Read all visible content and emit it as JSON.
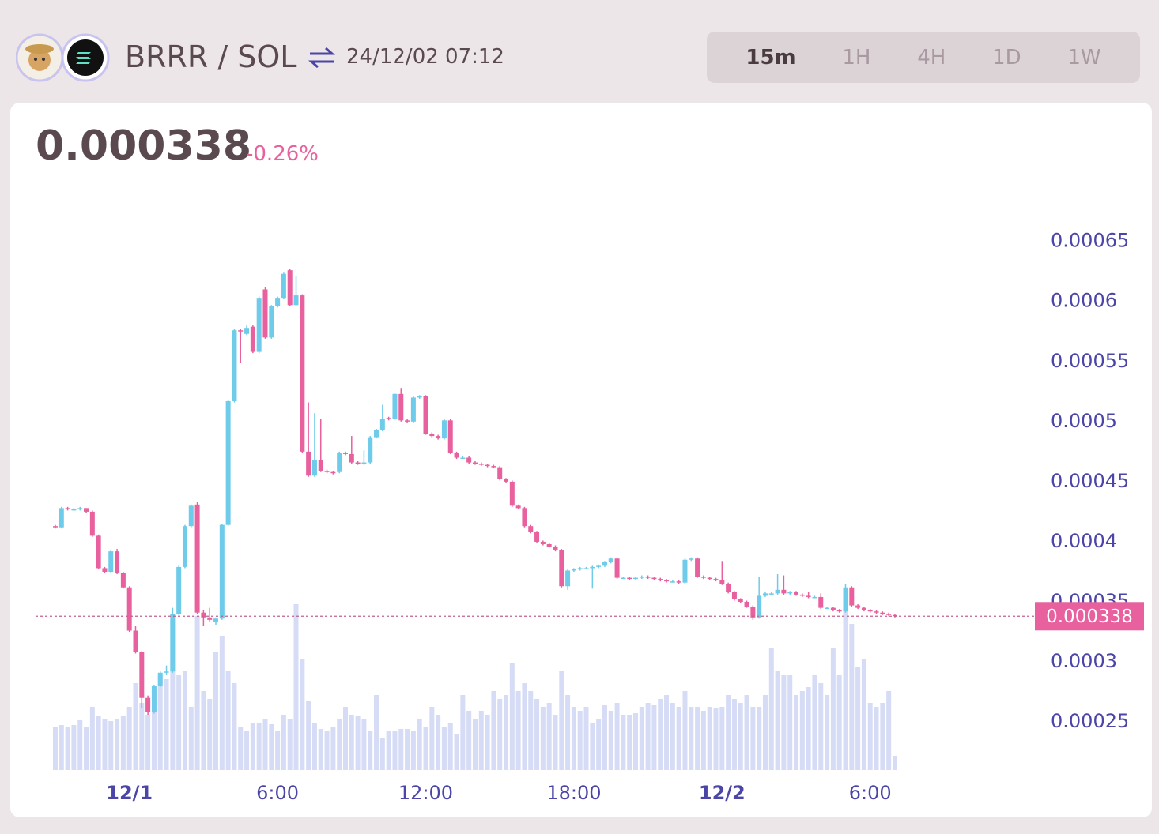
{
  "header": {
    "pair": "BRRR / SOL",
    "datetime": "24/12/02 07:12",
    "timeframes": [
      "15m",
      "1H",
      "4H",
      "1D",
      "1W"
    ],
    "selected": "15m"
  },
  "chart_data": {
    "type": "candlestick",
    "last_price": 0.000338,
    "change": "-0.26%",
    "up_color": "#6ecbea",
    "down_color": "#e8609e",
    "volume_color": "#d6dcf5",
    "xlim": [
      -3.8,
      36.7
    ],
    "ylim": [
      0.00021,
      0.00068
    ],
    "yticks": [
      0.00025,
      0.0003,
      0.00035,
      0.0004,
      0.00045,
      0.0005,
      0.00055,
      0.0006,
      0.00065
    ],
    "xticks": [
      {
        "value": 0,
        "label": "12/1"
      },
      {
        "value": 6,
        "label": "6:00"
      },
      {
        "value": 12,
        "label": "12:00"
      },
      {
        "value": 18,
        "label": "18:00"
      },
      {
        "value": 24,
        "label": "12/2"
      },
      {
        "value": 30,
        "label": "6:00"
      }
    ],
    "x": [
      -3,
      -2.75,
      -2.5,
      -2.25,
      -2,
      -1.75,
      -1.5,
      -1.25,
      -1,
      -0.75,
      -0.5,
      -0.25,
      0,
      0.25,
      0.5,
      0.75,
      1,
      1.25,
      1.5,
      1.75,
      2,
      2.25,
      2.5,
      2.75,
      3,
      3.25,
      3.5,
      3.75,
      4,
      4.25,
      4.5,
      4.75,
      5,
      5.25,
      5.5,
      5.75,
      6,
      6.25,
      6.5,
      6.75,
      7,
      7.25,
      7.5,
      7.75,
      8,
      8.25,
      8.5,
      8.75,
      9,
      9.25,
      9.5,
      9.75,
      10,
      10.25,
      10.5,
      10.75,
      11,
      11.25,
      11.5,
      11.75,
      12,
      12.25,
      12.5,
      12.75,
      13,
      13.25,
      13.5,
      13.75,
      14,
      14.25,
      14.5,
      14.75,
      15,
      15.25,
      15.5,
      15.75,
      16,
      16.25,
      16.5,
      16.75,
      17,
      17.25,
      17.5,
      17.75,
      18,
      18.25,
      18.5,
      18.75,
      19,
      19.25,
      19.5,
      19.75,
      20,
      20.25,
      20.5,
      20.75,
      21,
      21.25,
      21.5,
      21.75,
      22,
      22.25,
      22.5,
      22.75,
      23,
      23.25,
      23.5,
      23.75,
      24,
      24.25,
      24.5,
      24.75,
      25,
      25.25,
      25.5,
      25.75,
      26,
      26.25,
      26.5,
      26.75,
      27,
      27.25,
      27.5,
      27.75,
      28,
      28.25,
      28.5,
      28.75,
      29,
      29.25,
      29.5,
      29.75,
      30,
      30.25,
      30.5,
      30.75,
      31
    ],
    "candles": [
      [
        0.000413,
        0.000414,
        0.000411,
        0.000412
      ],
      [
        0.000412,
        0.000429,
        0.000411,
        0.000428
      ],
      [
        0.000428,
        0.000429,
        0.000426,
        0.000427
      ],
      [
        0.000427,
        0.000428,
        0.000426,
        0.000427
      ],
      [
        0.000427,
        0.000429,
        0.000426,
        0.000428
      ],
      [
        0.000428,
        0.000428,
        0.000424,
        0.000425
      ],
      [
        0.000425,
        0.000426,
        0.000404,
        0.000405
      ],
      [
        0.000405,
        0.000406,
        0.000377,
        0.000378
      ],
      [
        0.000378,
        0.000379,
        0.000374,
        0.000375
      ],
      [
        0.000375,
        0.000393,
        0.000374,
        0.000392
      ],
      [
        0.000392,
        0.000394,
        0.000373,
        0.000374
      ],
      [
        0.000374,
        0.000375,
        0.000361,
        0.000362
      ],
      [
        0.000362,
        0.000363,
        0.000325,
        0.000326
      ],
      [
        0.000326,
        0.00033,
        0.000307,
        0.000308
      ],
      [
        0.000308,
        0.000309,
        0.000262,
        0.00027
      ],
      [
        0.00027,
        0.000272,
        0.000256,
        0.000258
      ],
      [
        0.000258,
        0.000281,
        0.000257,
        0.00028
      ],
      [
        0.00028,
        0.000292,
        0.000279,
        0.000291
      ],
      [
        0.000291,
        0.000297,
        0.000289,
        0.000292
      ],
      [
        0.000292,
        0.000345,
        0.000291,
        0.00034
      ],
      [
        0.00034,
        0.00038,
        0.000339,
        0.000379
      ],
      [
        0.000379,
        0.000414,
        0.000378,
        0.000413
      ],
      [
        0.000413,
        0.000431,
        0.000412,
        0.00043
      ],
      [
        0.000431,
        0.000433,
        0.00034,
        0.000341
      ],
      [
        0.000341,
        0.000343,
        0.00033,
        0.000337
      ],
      [
        0.000337,
        0.000345,
        0.000333,
        0.000335
      ],
      [
        0.000333,
        0.000337,
        0.000331,
        0.000336
      ],
      [
        0.000336,
        0.000415,
        0.000335,
        0.000414
      ],
      [
        0.000414,
        0.000518,
        0.000413,
        0.000517
      ],
      [
        0.000517,
        0.000577,
        0.000516,
        0.000576
      ],
      [
        0.000576,
        0.000577,
        0.000549,
        0.000575
      ],
      [
        0.000573,
        0.00058,
        0.000572,
        0.000578
      ],
      [
        0.000579,
        0.00058,
        0.000557,
        0.000558
      ],
      [
        0.000558,
        0.000604,
        0.000557,
        0.000603
      ],
      [
        0.00061,
        0.000612,
        0.000569,
        0.00057
      ],
      [
        0.00057,
        0.000597,
        0.000569,
        0.000596
      ],
      [
        0.000596,
        0.000604,
        0.000595,
        0.000603
      ],
      [
        0.000603,
        0.000624,
        0.000602,
        0.000623
      ],
      [
        0.000626,
        0.000627,
        0.000596,
        0.000597
      ],
      [
        0.000597,
        0.000621,
        0.000596,
        0.000605
      ],
      [
        0.000605,
        0.000606,
        0.000474,
        0.000475
      ],
      [
        0.000475,
        0.000516,
        0.000454,
        0.000455
      ],
      [
        0.000455,
        0.000507,
        0.000454,
        0.000468
      ],
      [
        0.000468,
        0.000502,
        0.000458,
        0.000459
      ],
      [
        0.000459,
        0.00046,
        0.000457,
        0.000458
      ],
      [
        0.000458,
        0.000459,
        0.000456,
        0.000457
      ],
      [
        0.000458,
        0.000475,
        0.000457,
        0.000474
      ],
      [
        0.000474,
        0.000475,
        0.000472,
        0.000473
      ],
      [
        0.000473,
        0.000488,
        0.000465,
        0.000466
      ],
      [
        0.000466,
        0.000467,
        0.000464,
        0.000465
      ],
      [
        0.000465,
        0.000476,
        0.000464,
        0.000466
      ],
      [
        0.000466,
        0.000488,
        0.000465,
        0.000487
      ],
      [
        0.000487,
        0.000494,
        0.000486,
        0.000493
      ],
      [
        0.000493,
        0.000514,
        0.000492,
        0.000502
      ],
      [
        0.000503,
        0.000504,
        0.000501,
        0.000502
      ],
      [
        0.000502,
        0.000524,
        0.000501,
        0.000523
      ],
      [
        0.000523,
        0.000528,
        0.0005,
        0.000501
      ],
      [
        0.000501,
        0.000502,
        0.000499,
        0.0005
      ],
      [
        0.0005,
        0.000521,
        0.000499,
        0.00052
      ],
      [
        0.00052,
        0.000522,
        0.000519,
        0.000521
      ],
      [
        0.000521,
        0.000522,
        0.000489,
        0.00049
      ],
      [
        0.00049,
        0.000491,
        0.000487,
        0.000488
      ],
      [
        0.000488,
        0.000489,
        0.000485,
        0.000486
      ],
      [
        0.000486,
        0.000502,
        0.000485,
        0.000501
      ],
      [
        0.000501,
        0.000502,
        0.000473,
        0.000474
      ],
      [
        0.000474,
        0.000475,
        0.000469,
        0.00047
      ],
      [
        0.00047,
        0.000471,
        0.000469,
        0.00047
      ],
      [
        0.00047,
        0.000471,
        0.000465,
        0.000466
      ],
      [
        0.000466,
        0.000467,
        0.000464,
        0.000465
      ],
      [
        0.000465,
        0.000466,
        0.000463,
        0.000464
      ],
      [
        0.000464,
        0.000465,
        0.000462,
        0.000463
      ],
      [
        0.000463,
        0.000464,
        0.000461,
        0.000462
      ],
      [
        0.000462,
        0.000463,
        0.000451,
        0.000452
      ],
      [
        0.000452,
        0.000453,
        0.000449,
        0.00045
      ],
      [
        0.00045,
        0.000451,
        0.000429,
        0.00043
      ],
      [
        0.00043,
        0.000431,
        0.000427,
        0.000428
      ],
      [
        0.000428,
        0.000429,
        0.000412,
        0.000413
      ],
      [
        0.000413,
        0.000414,
        0.000407,
        0.000408
      ],
      [
        0.000408,
        0.000409,
        0.000399,
        0.0004
      ],
      [
        0.0004,
        0.000401,
        0.000397,
        0.000398
      ],
      [
        0.000398,
        0.000399,
        0.000395,
        0.000396
      ],
      [
        0.000396,
        0.000397,
        0.000392,
        0.000393
      ],
      [
        0.000393,
        0.000394,
        0.000362,
        0.000363
      ],
      [
        0.000363,
        0.000377,
        0.00036,
        0.000376
      ],
      [
        0.000376,
        0.000378,
        0.000375,
        0.000377
      ],
      [
        0.000377,
        0.000379,
        0.000376,
        0.000378
      ],
      [
        0.000378,
        0.000379,
        0.000377,
        0.000378
      ],
      [
        0.000378,
        0.00038,
        0.000361,
        0.000379
      ],
      [
        0.000379,
        0.000381,
        0.000378,
        0.00038
      ],
      [
        0.00038,
        0.000384,
        0.000379,
        0.000383
      ],
      [
        0.000383,
        0.000387,
        0.000382,
        0.000386
      ],
      [
        0.000386,
        0.000387,
        0.000369,
        0.00037
      ],
      [
        0.00037,
        0.000371,
        0.000369,
        0.00037
      ],
      [
        0.00037,
        0.000371,
        0.000368,
        0.000369
      ],
      [
        0.000369,
        0.000371,
        0.000368,
        0.00037
      ],
      [
        0.00037,
        0.000372,
        0.000369,
        0.000371
      ],
      [
        0.000371,
        0.000372,
        0.000369,
        0.00037
      ],
      [
        0.00037,
        0.000371,
        0.000368,
        0.000369
      ],
      [
        0.000369,
        0.00037,
        0.000367,
        0.000368
      ],
      [
        0.000368,
        0.000369,
        0.000366,
        0.000367
      ],
      [
        0.000367,
        0.000368,
        0.000366,
        0.000367
      ],
      [
        0.000367,
        0.000368,
        0.000365,
        0.000366
      ],
      [
        0.000366,
        0.000386,
        0.000365,
        0.000385
      ],
      [
        0.000385,
        0.000387,
        0.000384,
        0.000386
      ],
      [
        0.000386,
        0.000387,
        0.00037,
        0.000371
      ],
      [
        0.000371,
        0.000372,
        0.000369,
        0.00037
      ],
      [
        0.00037,
        0.000371,
        0.000368,
        0.000369
      ],
      [
        0.000369,
        0.00037,
        0.000367,
        0.000368
      ],
      [
        0.000368,
        0.000384,
        0.000364,
        0.000365
      ],
      [
        0.000365,
        0.000366,
        0.000357,
        0.000358
      ],
      [
        0.000358,
        0.000359,
        0.000351,
        0.000352
      ],
      [
        0.000352,
        0.000353,
        0.000349,
        0.00035
      ],
      [
        0.00035,
        0.000351,
        0.000345,
        0.000346
      ],
      [
        0.000346,
        0.000347,
        0.000335,
        0.000337
      ],
      [
        0.000337,
        0.000371,
        0.000336,
        0.000355
      ],
      [
        0.000355,
        0.000358,
        0.000354,
        0.000357
      ],
      [
        0.000357,
        0.000358,
        0.000356,
        0.000357
      ],
      [
        0.000357,
        0.000373,
        0.000356,
        0.00036
      ],
      [
        0.00036,
        0.000372,
        0.000356,
        0.000357
      ],
      [
        0.000357,
        0.000359,
        0.000356,
        0.000358
      ],
      [
        0.000358,
        0.000359,
        0.000355,
        0.000356
      ],
      [
        0.000356,
        0.000357,
        0.000354,
        0.000355
      ],
      [
        0.000355,
        0.000358,
        0.000353,
        0.000354
      ],
      [
        0.000354,
        0.000355,
        0.000353,
        0.000354
      ],
      [
        0.000354,
        0.000357,
        0.000344,
        0.000345
      ],
      [
        0.000345,
        0.000346,
        0.000344,
        0.000345
      ],
      [
        0.000345,
        0.000346,
        0.000342,
        0.000343
      ],
      [
        0.000343,
        0.000344,
        0.000341,
        0.000342
      ],
      [
        0.000342,
        0.000365,
        0.000341,
        0.000362
      ],
      [
        0.000362,
        0.000363,
        0.000346,
        0.000347
      ],
      [
        0.000347,
        0.000348,
        0.000344,
        0.000345
      ],
      [
        0.000345,
        0.000346,
        0.000342,
        0.000343
      ],
      [
        0.000343,
        0.000344,
        0.000341,
        0.000342
      ],
      [
        0.000342,
        0.000343,
        0.00034,
        0.000341
      ],
      [
        0.000341,
        0.000342,
        0.000339,
        0.00034
      ],
      [
        0.00034,
        0.000341,
        0.000338,
        0.000339
      ],
      [
        0.000339,
        0.00034,
        0.000337,
        0.000338
      ]
    ],
    "volume": [
      55,
      57,
      55,
      57,
      63,
      55,
      80,
      68,
      65,
      62,
      64,
      68,
      80,
      110,
      85,
      70,
      75,
      120,
      115,
      190,
      120,
      125,
      80,
      195,
      100,
      90,
      150,
      170,
      125,
      110,
      55,
      50,
      60,
      60,
      65,
      58,
      50,
      70,
      65,
      210,
      140,
      88,
      60,
      52,
      50,
      55,
      65,
      80,
      70,
      68,
      65,
      50,
      95,
      40,
      50,
      50,
      52,
      52,
      50,
      65,
      55,
      80,
      70,
      55,
      60,
      45,
      95,
      75,
      65,
      75,
      70,
      100,
      90,
      95,
      135,
      100,
      110,
      100,
      90,
      80,
      85,
      70,
      125,
      95,
      80,
      75,
      80,
      60,
      65,
      82,
      75,
      85,
      70,
      70,
      72,
      80,
      85,
      82,
      90,
      95,
      85,
      80,
      100,
      80,
      80,
      75,
      80,
      78,
      80,
      95,
      90,
      85,
      95,
      80,
      80,
      95,
      155,
      125,
      120,
      120,
      95,
      100,
      105,
      120,
      110,
      95,
      155,
      120,
      210,
      185,
      130,
      140,
      85,
      80,
      85,
      100,
      18
    ]
  }
}
